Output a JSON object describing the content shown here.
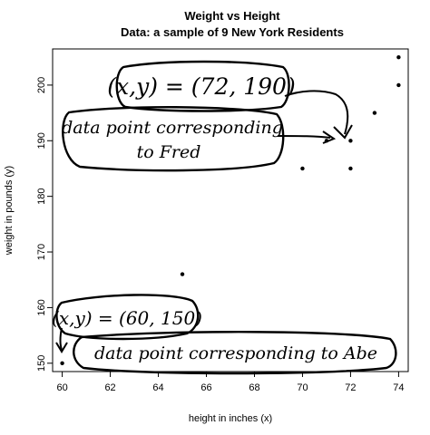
{
  "chart_data": {
    "type": "scatter",
    "title": "Weight vs Height",
    "subtitle": "Data: a sample of 9 New York Residents",
    "xlabel": "height in inches (x)",
    "ylabel": "weight in pounds (y)",
    "xlim": [
      59.6,
      74.4
    ],
    "ylim": [
      148.5,
      206.5
    ],
    "x_ticks": [
      60,
      62,
      64,
      66,
      68,
      70,
      72,
      74
    ],
    "y_ticks": [
      150,
      160,
      170,
      180,
      190,
      200
    ],
    "grid": false,
    "points": [
      {
        "x": 60,
        "y": 150
      },
      {
        "x": 65,
        "y": 166
      },
      {
        "x": 70,
        "y": 185
      },
      {
        "x": 71,
        "y": 190
      },
      {
        "x": 72,
        "y": 190
      },
      {
        "x": 72,
        "y": 185
      },
      {
        "x": 73,
        "y": 195
      },
      {
        "x": 74,
        "y": 205
      },
      {
        "x": 74,
        "y": 200
      }
    ],
    "annotations": [
      {
        "text": "(x,y) = (72, 190)",
        "target": {
          "x": 72,
          "y": 190
        }
      },
      {
        "text": "data point corresponding",
        "text2": "to Fred",
        "target": {
          "x": 72,
          "y": 190
        }
      },
      {
        "text": "(x,y) = (60, 150)",
        "target": {
          "x": 60,
          "y": 150
        }
      },
      {
        "text": "data point corresponding to Abe",
        "target": {
          "x": 60,
          "y": 150
        }
      }
    ]
  }
}
